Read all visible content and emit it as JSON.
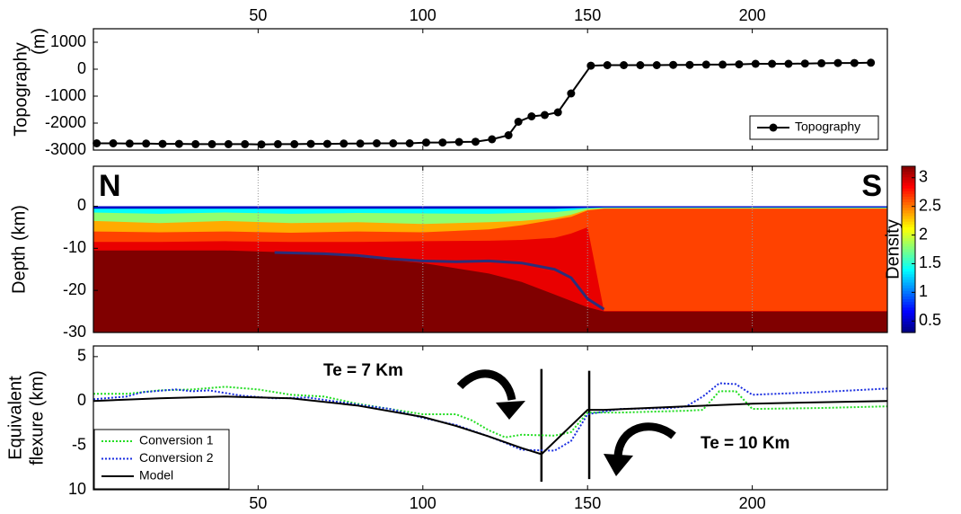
{
  "chart_data": [
    {
      "type": "line",
      "ylabel": [
        "Topography",
        "(m)"
      ],
      "xlim": [
        0,
        241
      ],
      "xticks": [
        50,
        100,
        150,
        200
      ],
      "xtick_labels": "top",
      "ylim": [
        -3000,
        1500
      ],
      "yticks": [
        1000,
        0,
        -1000,
        -2000,
        -3000
      ],
      "legend": "lower right",
      "series": [
        {
          "name": "Topography",
          "color": "#000000",
          "marker": "o",
          "style": "solid",
          "x": [
            1,
            6,
            11,
            16,
            21,
            26,
            31,
            36,
            41,
            46,
            51,
            56,
            61,
            66,
            71,
            76,
            81,
            86,
            91,
            96,
            101,
            106,
            111,
            116,
            121,
            126,
            129,
            133,
            137,
            141,
            145,
            151,
            156,
            161,
            166,
            171,
            176,
            181,
            186,
            191,
            196,
            201,
            206,
            211,
            216,
            221,
            226,
            231,
            236
          ],
          "values": [
            -2750,
            -2750,
            -2760,
            -2760,
            -2770,
            -2770,
            -2780,
            -2780,
            -2780,
            -2780,
            -2790,
            -2780,
            -2780,
            -2770,
            -2770,
            -2760,
            -2760,
            -2750,
            -2750,
            -2750,
            -2720,
            -2720,
            -2700,
            -2690,
            -2600,
            -2450,
            -1950,
            -1750,
            -1700,
            -1600,
            -900,
            130,
            150,
            150,
            150,
            150,
            160,
            160,
            170,
            170,
            180,
            200,
            200,
            200,
            210,
            220,
            230,
            230,
            240
          ]
        }
      ]
    },
    {
      "type": "section",
      "ylabel": "Depth (km)",
      "corner_labels": [
        "N",
        "S"
      ],
      "xlim": [
        0,
        241
      ],
      "xticks": [
        50,
        100,
        150,
        200
      ],
      "xtick_labels": "none",
      "grid": true,
      "ylim": [
        -30,
        9.5
      ],
      "yticks": [
        0,
        -10,
        -20,
        -30
      ],
      "colormap": "jet",
      "clim": [
        0.3,
        3.2
      ],
      "colorbar_label": "Density",
      "colorbar_ticks": [
        3,
        2.5,
        2,
        1.5,
        1,
        0.5
      ],
      "x": [
        0,
        20,
        40,
        60,
        80,
        100,
        120,
        130,
        140,
        145,
        150,
        155,
        170,
        200,
        241
      ],
      "layers": [
        {
          "density": 0.5,
          "top": [
            0,
            0,
            0,
            0,
            0,
            0,
            0,
            0,
            0,
            0,
            0,
            0,
            0,
            0,
            0
          ]
        },
        {
          "density": 1.4,
          "top": [
            -0.6,
            -0.6,
            -0.6,
            -0.6,
            -0.6,
            -0.6,
            -0.6,
            -0.6,
            -0.6,
            -0.5,
            -0.4,
            -0.3,
            -0.3,
            -0.3,
            -0.3
          ]
        },
        {
          "density": 1.8,
          "top": [
            -1.5,
            -1.8,
            -1.5,
            -1.8,
            -1.6,
            -1.7,
            -1.8,
            -1.6,
            -1.4,
            -1.0,
            -0.5,
            -0.4,
            -0.4,
            -0.4,
            -0.4
          ]
        },
        {
          "density": 2.35,
          "top": [
            -3.5,
            -4,
            -3.5,
            -4,
            -3.8,
            -4.2,
            -3.8,
            -3.5,
            -2.8,
            -2,
            -0.8,
            -0.5,
            -0.5,
            -0.5,
            -0.5
          ]
        },
        {
          "density": 2.65,
          "top": [
            -6,
            -6.2,
            -6,
            -6.3,
            -6,
            -6.2,
            -5.5,
            -4.5,
            -3.2,
            -2.5,
            -1,
            -0.6,
            -0.6,
            -0.6,
            -0.6
          ]
        },
        {
          "density": 2.9,
          "top": [
            -8.5,
            -8.5,
            -8.3,
            -8.5,
            -8.5,
            -8.3,
            -8.2,
            -8,
            -7.5,
            -6.5,
            -5,
            -24.9,
            -24.9,
            -24.9,
            -24.9
          ]
        },
        {
          "density": 3.2,
          "top": [
            -10.5,
            -10.5,
            -10.5,
            -11,
            -12,
            -13.5,
            -16,
            -18,
            -21,
            -22.5,
            -24,
            -25,
            -25,
            -25,
            -25
          ]
        }
      ],
      "series": [
        {
          "color": "#2b2f7a",
          "x": [
            55,
            70,
            80,
            90,
            100,
            110,
            120,
            130,
            140,
            145,
            150,
            155
          ],
          "values": [
            -11,
            -11.3,
            -11.7,
            -12.5,
            -13,
            -13.2,
            -13,
            -13.5,
            -15,
            -17,
            -22,
            -24.5
          ]
        }
      ]
    },
    {
      "type": "line",
      "ylabel": [
        "Equivalent",
        "flexure (km)"
      ],
      "xlim": [
        0,
        241
      ],
      "xticks": [
        50,
        100,
        150,
        200
      ],
      "xtick_labels": "bottom",
      "ylim": [
        -10,
        6.2
      ],
      "yticks": [
        5,
        0,
        -5,
        {
          "value": -10,
          "label": "10"
        }
      ],
      "legend": "lower left",
      "annotations": [
        "Te = 7 Km",
        "Te = 10 Km"
      ],
      "vlines": [
        {
          "x": 136,
          "y": [
            3.6,
            -9.1
          ]
        },
        {
          "x": 150.5,
          "y": [
            3.4,
            -8.8
          ]
        }
      ],
      "series": [
        {
          "name": "Conversion 1",
          "color": "#22dd22",
          "style": "dotted",
          "x": [
            0,
            10,
            20,
            30,
            40,
            50,
            60,
            70,
            80,
            90,
            100,
            110,
            115,
            120,
            125,
            130,
            140,
            145,
            150,
            160,
            180,
            185,
            190,
            195,
            200,
            220,
            241
          ],
          "values": [
            0.8,
            0.8,
            1.2,
            1.3,
            1.6,
            1.3,
            0.7,
            0.5,
            -0.3,
            -0.9,
            -1.5,
            -1.5,
            -2.2,
            -3.3,
            -4.1,
            -3.8,
            -3.9,
            -3.5,
            -1.3,
            -1.3,
            -1.1,
            -1,
            1.1,
            1.1,
            -0.9,
            -0.8,
            -0.6
          ]
        },
        {
          "name": "Conversion 2",
          "color": "#1a2ee0",
          "style": "dotted",
          "x": [
            0,
            10,
            15,
            25,
            30,
            35,
            45,
            55,
            65,
            80,
            90,
            100,
            110,
            120,
            125,
            130,
            140,
            145,
            150,
            160,
            175,
            180,
            185,
            190,
            195,
            200,
            220,
            241
          ],
          "values": [
            0.2,
            0.5,
            1,
            1.3,
            1.1,
            1.2,
            0.6,
            0.3,
            0.4,
            -0.4,
            -0.9,
            -1.9,
            -2.7,
            -4,
            -4.7,
            -5.5,
            -5.6,
            -4.5,
            -1.5,
            -0.9,
            -0.8,
            -0.6,
            0.5,
            2,
            1.9,
            0.7,
            1,
            1.4
          ]
        },
        {
          "name": "Model",
          "color": "#000000",
          "style": "solid",
          "x": [
            0,
            20,
            40,
            60,
            80,
            100,
            110,
            120,
            130,
            136,
            150,
            155,
            180,
            200,
            241
          ],
          "values": [
            0,
            0.3,
            0.5,
            0.3,
            -0.5,
            -1.8,
            -2.8,
            -4,
            -5.3,
            -6,
            -1,
            -1,
            -0.6,
            -0.3,
            0
          ]
        }
      ]
    }
  ]
}
